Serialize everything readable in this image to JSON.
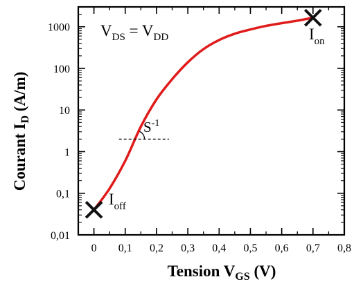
{
  "chart_data": {
    "type": "line",
    "title": "",
    "ylabel": {
      "main": "Courant I",
      "sub": "D",
      "unit": " (A/m)"
    },
    "xlabel": {
      "main": "Tension V",
      "sub": "GS",
      "unit": " (V)"
    },
    "x_ticks": [
      {
        "v": 0,
        "label": "0"
      },
      {
        "v": 0.1,
        "label": "0,1"
      },
      {
        "v": 0.2,
        "label": "0,2"
      },
      {
        "v": 0.3,
        "label": "0,3"
      },
      {
        "v": 0.4,
        "label": "0,4"
      },
      {
        "v": 0.5,
        "label": "0,5"
      },
      {
        "v": 0.6,
        "label": "0,6"
      },
      {
        "v": 0.7,
        "label": "0,7"
      },
      {
        "v": 0.8,
        "label": "0,8"
      }
    ],
    "y_ticks": [
      {
        "v": 0.01,
        "label": "0,01"
      },
      {
        "v": 0.1,
        "label": "0,1"
      },
      {
        "v": 1,
        "label": "1"
      },
      {
        "v": 10,
        "label": "10"
      },
      {
        "v": 100,
        "label": "100"
      },
      {
        "v": 1000,
        "label": "1000"
      }
    ],
    "xlim": [
      -0.05,
      0.8
    ],
    "ylim": [
      0.01,
      3000
    ],
    "yscale": "log",
    "series": [
      {
        "color": "#e01b1b",
        "x": [
          0.0,
          0.05,
          0.1,
          0.15,
          0.2,
          0.25,
          0.3,
          0.35,
          0.4,
          0.45,
          0.5,
          0.55,
          0.6,
          0.65,
          0.7
        ],
        "y": [
          0.04,
          0.13,
          0.6,
          4.0,
          18,
          55,
          140,
          290,
          480,
          680,
          860,
          1050,
          1220,
          1400,
          1650
        ]
      }
    ],
    "markers": [
      {
        "x": 0.0,
        "y": 0.04
      },
      {
        "x": 0.7,
        "y": 1650
      }
    ],
    "annotations": {
      "vds": {
        "a": "V",
        "a_sub": "DS",
        "eq": " = V",
        "b_sub": "DD"
      },
      "ion": {
        "main": "I",
        "sub": "on"
      },
      "ioff": {
        "main": "I",
        "sub": "off"
      },
      "slope": {
        "main": "S",
        "sup": "-1"
      }
    },
    "dashed_line": {
      "x": [
        0.08,
        0.24
      ],
      "y": 2
    },
    "grid": false,
    "legend": "none"
  }
}
